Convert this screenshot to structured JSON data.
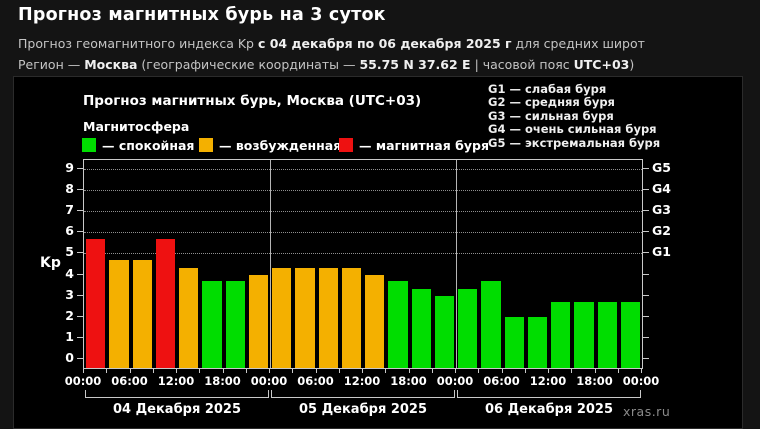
{
  "page": {
    "title": "Прогноз магнитных бурь на 3 суток",
    "subtitle1": {
      "pre": "Прогноз геомагнитного индекса Kp ",
      "bold": "с 04 декабря по 06 декабря 2025 г",
      "post": " для средних широт"
    },
    "subtitle2": {
      "pre": "Регион — ",
      "bold1": "Москва",
      "mid1": " (географические координаты — ",
      "bold2": "55.75 N 37.62 E",
      "mid2": " | часовой пояс ",
      "bold3": "UTC+03",
      "post": ")"
    }
  },
  "figure": {
    "title": "Прогноз магнитных бурь, Москва (UTC+03)",
    "legend_title": "Магнитосфера",
    "legend": [
      {
        "state": "quiet",
        "label": "— спокойная"
      },
      {
        "state": "excited",
        "label": "— возбужденная"
      },
      {
        "state": "storm",
        "label": "— магнитная буря"
      }
    ],
    "g_legend": [
      "G1 — слабая буря",
      "G2 — средняя буря",
      "G3 — сильная буря",
      "G4 — очень сильная буря",
      "G5 — экстремальная буря"
    ],
    "watermark": "xras.ru"
  },
  "chart_data": {
    "type": "bar",
    "title": "Прогноз магнитных бурь, Москва (UTC+03)",
    "ylabel": "Kp",
    "ylim": [
      -0.45,
      9.45
    ],
    "yticks": [
      0,
      1,
      2,
      3,
      4,
      5,
      6,
      7,
      8,
      9
    ],
    "gridlines_at": [
      5,
      6,
      7,
      8,
      9
    ],
    "grid": "dotted horizontal at storm levels only",
    "legend_position": "top",
    "hours_per_bar": 3,
    "x_time_labels": [
      "00:00",
      "06:00",
      "12:00",
      "18:00",
      "00:00",
      "06:00",
      "12:00",
      "18:00",
      "00:00",
      "06:00",
      "12:00",
      "18:00",
      "00:00"
    ],
    "right_axis_labels": [
      {
        "kp": 5,
        "label": "G1"
      },
      {
        "kp": 6,
        "label": "G2"
      },
      {
        "kp": 7,
        "label": "G3"
      },
      {
        "kp": 8,
        "label": "G4"
      },
      {
        "kp": 9,
        "label": "G5"
      }
    ],
    "colors": {
      "quiet": "#00dd00",
      "excited": "#f4b000",
      "storm": "#ee1111"
    },
    "days": [
      {
        "label": "04 Декабря 2025",
        "values": [
          5.67,
          4.67,
          4.67,
          5.67,
          4.33,
          3.67,
          3.67,
          4.0
        ],
        "states": [
          "storm",
          "excited",
          "excited",
          "storm",
          "excited",
          "quiet",
          "quiet",
          "excited"
        ]
      },
      {
        "label": "05 Декабря 2025",
        "values": [
          4.33,
          4.33,
          4.33,
          4.33,
          4.0,
          3.67,
          3.33,
          3.0
        ],
        "states": [
          "excited",
          "excited",
          "excited",
          "excited",
          "excited",
          "quiet",
          "quiet",
          "quiet"
        ]
      },
      {
        "label": "06 Декабря 2025",
        "values": [
          3.33,
          3.67,
          2.0,
          2.0,
          2.67,
          2.67,
          2.67,
          2.67
        ],
        "states": [
          "quiet",
          "quiet",
          "quiet",
          "quiet",
          "quiet",
          "quiet",
          "quiet",
          "quiet"
        ]
      }
    ]
  }
}
